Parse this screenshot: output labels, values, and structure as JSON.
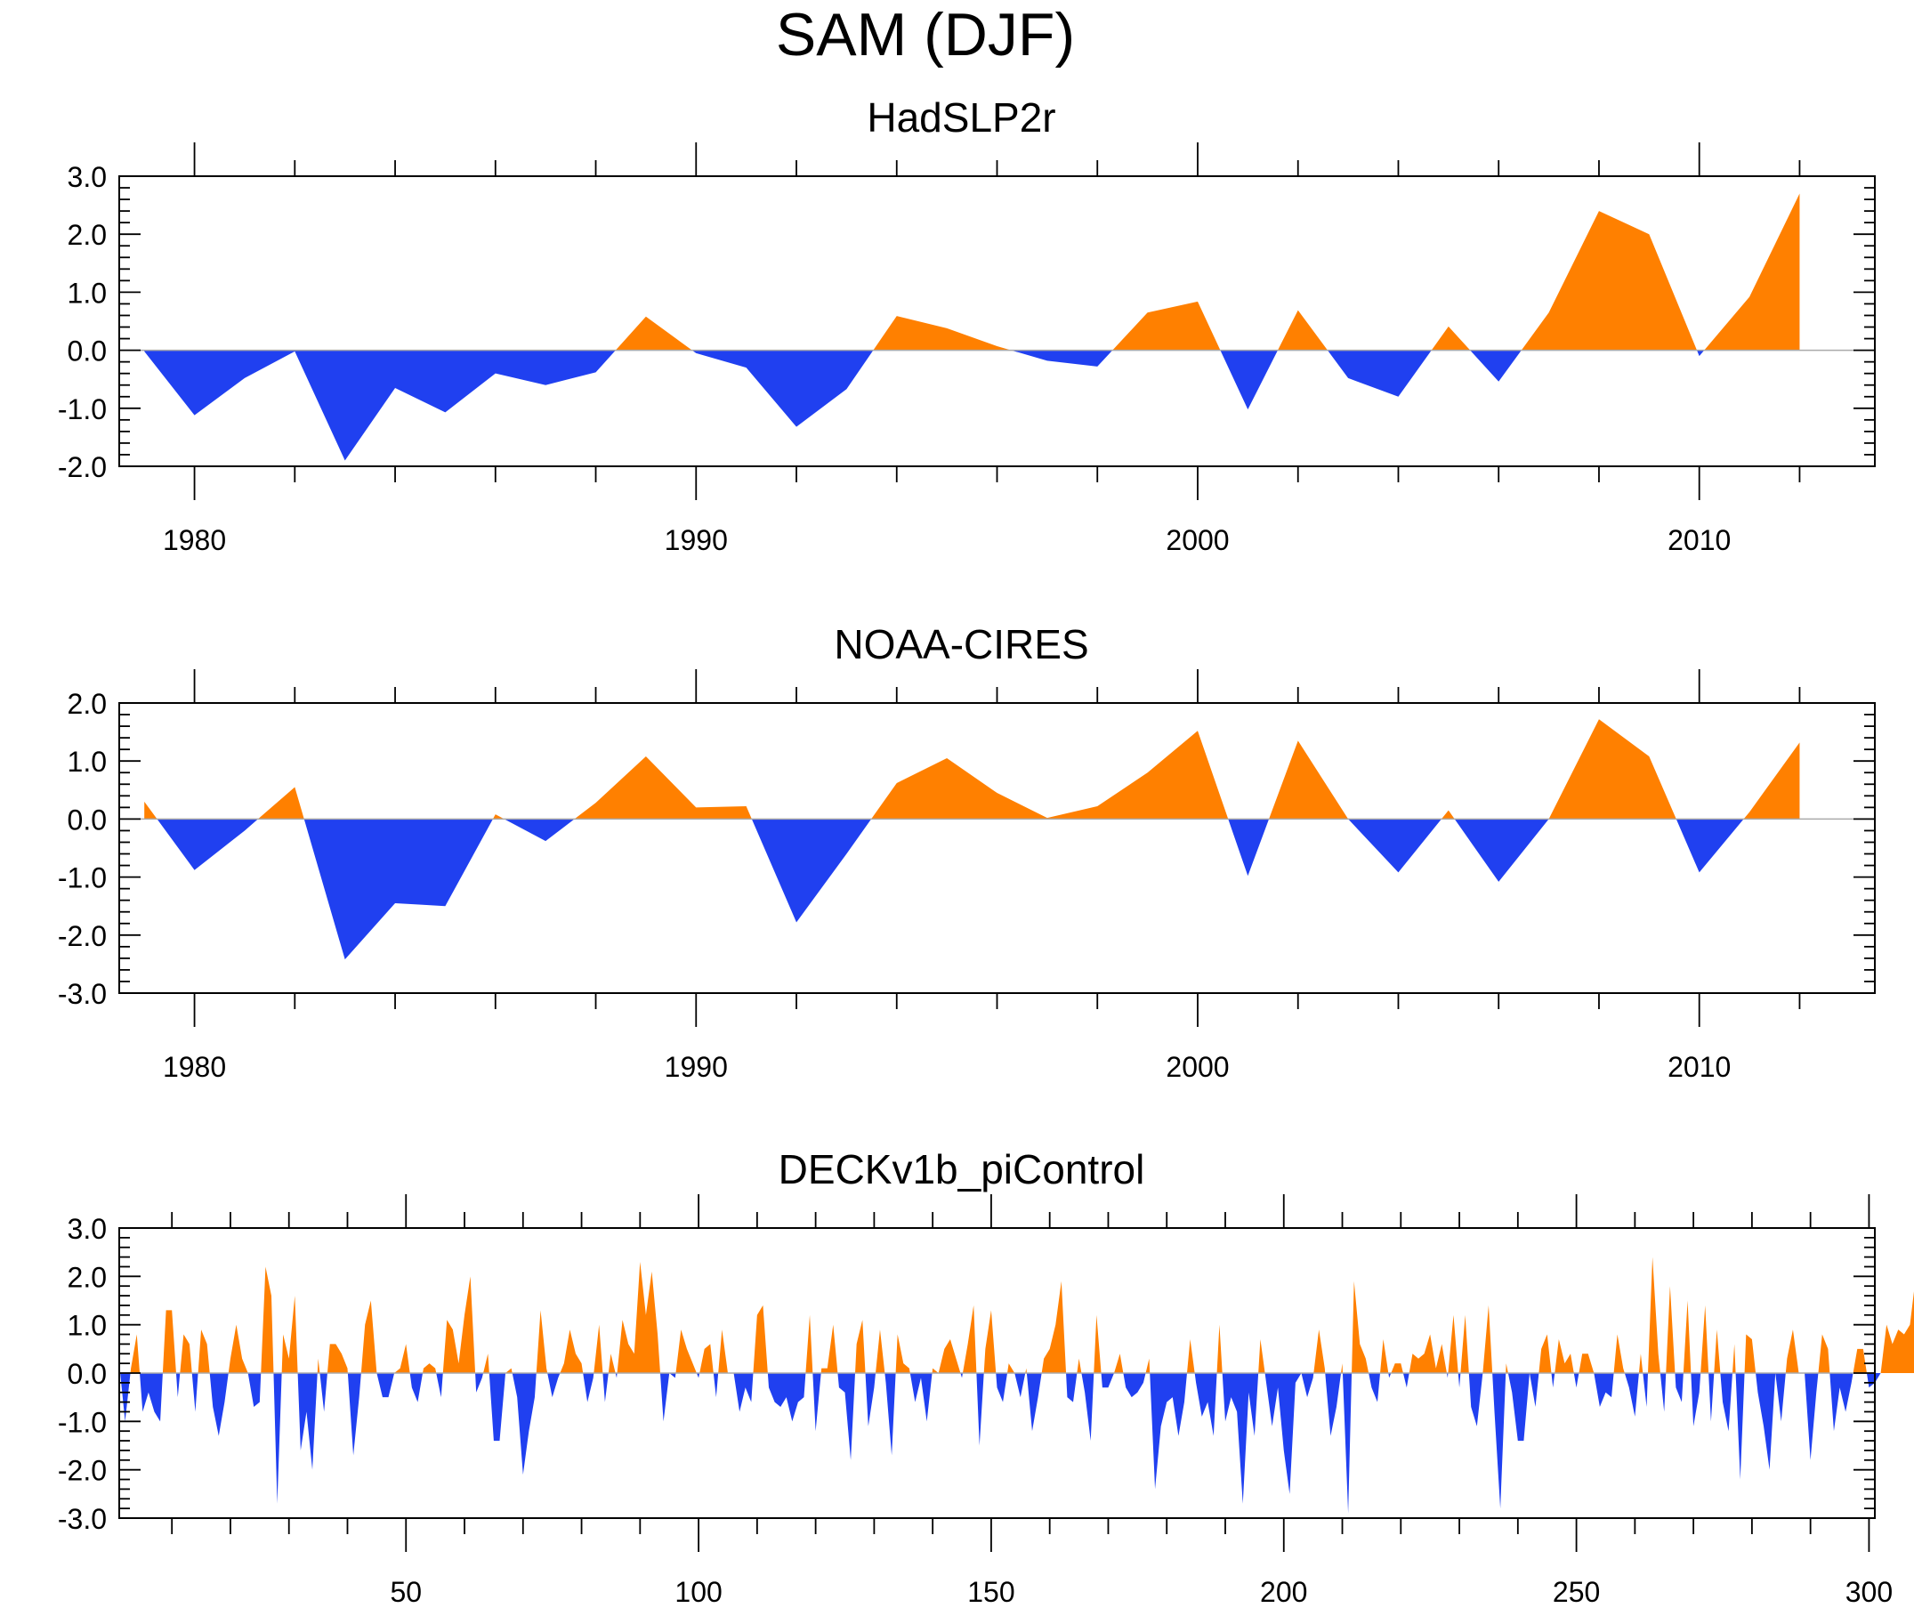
{
  "figure": {
    "title": "SAM (DJF)",
    "positive_color": "#ff8000",
    "negative_color": "#2040f0"
  },
  "chart_data": [
    {
      "type": "area",
      "title": "HadSLP2r",
      "xlabel": "",
      "ylabel": "",
      "xlim": [
        1978.5,
        2013.5
      ],
      "ylim": [
        -2.0,
        3.0
      ],
      "x_ticks": [
        1980,
        1990,
        2000,
        2010
      ],
      "x_tick_labels": [
        "1980",
        "1990",
        "2000",
        "2010"
      ],
      "y_ticks": [
        -2,
        -1,
        0,
        1,
        2,
        3
      ],
      "y_tick_labels": [
        "-2.0",
        "-1.0",
        "0.0",
        "1.0",
        "2.0",
        "3.0"
      ],
      "x": [
        1979,
        1980,
        1981,
        1982,
        1983,
        1984,
        1985,
        1986,
        1987,
        1988,
        1989,
        1990,
        1991,
        1992,
        1993,
        1994,
        1995,
        1996,
        1997,
        1998,
        1999,
        2000,
        2001,
        2002,
        2003,
        2004,
        2005,
        2006,
        2007,
        2008,
        2009,
        2010,
        2011,
        2012
      ],
      "values": [
        -0.02,
        -1.12,
        -0.48,
        -0.02,
        -1.9,
        -0.65,
        -1.07,
        -0.4,
        -0.6,
        -0.38,
        0.58,
        -0.05,
        -0.3,
        -1.32,
        -0.67,
        0.59,
        0.38,
        0.07,
        -0.18,
        -0.28,
        0.65,
        0.84,
        -1.02,
        0.69,
        -0.48,
        -0.8,
        0.41,
        -0.54,
        0.65,
        2.4,
        2.0,
        -0.1,
        0.92,
        2.7
      ]
    },
    {
      "type": "area",
      "title": "NOAA-CIRES",
      "xlabel": "",
      "ylabel": "",
      "xlim": [
        1978.5,
        2013.5
      ],
      "ylim": [
        -3.0,
        2.0
      ],
      "x_ticks": [
        1980,
        1990,
        2000,
        2010
      ],
      "x_tick_labels": [
        "1980",
        "1990",
        "2000",
        "2010"
      ],
      "y_ticks": [
        -3,
        -2,
        -1,
        0,
        1,
        2
      ],
      "y_tick_labels": [
        "-3.0",
        "-2.0",
        "-1.0",
        "0.0",
        "1.0",
        "2.0"
      ],
      "x": [
        1979,
        1980,
        1981,
        1982,
        1983,
        1984,
        1985,
        1986,
        1987,
        1988,
        1989,
        1990,
        1991,
        1992,
        1993,
        1994,
        1995,
        1996,
        1997,
        1998,
        1999,
        2000,
        2001,
        2002,
        2003,
        2004,
        2005,
        2006,
        2007,
        2008,
        2009,
        2010,
        2011,
        2012
      ],
      "values": [
        0.3,
        -0.88,
        -0.2,
        0.55,
        -2.42,
        -1.45,
        -1.5,
        0.08,
        -0.38,
        0.28,
        1.08,
        0.2,
        0.22,
        -1.78,
        -0.6,
        0.62,
        1.05,
        0.45,
        0.02,
        0.22,
        0.8,
        1.52,
        -0.98,
        1.35,
        0.0,
        -0.92,
        0.15,
        -1.08,
        0.0,
        1.72,
        1.08,
        -0.92,
        0.12,
        1.32
      ]
    },
    {
      "type": "area",
      "title": "DECKv1b_piControl",
      "xlabel": "",
      "ylabel": "",
      "xlim": [
        1,
        301
      ],
      "ylim": [
        -3.0,
        3.0
      ],
      "x_ticks": [
        50,
        100,
        150,
        200,
        250,
        300
      ],
      "x_tick_labels": [
        "50",
        "100",
        "150",
        "200",
        "250",
        "300"
      ],
      "y_ticks": [
        -3,
        -2,
        -1,
        0,
        1,
        2,
        3
      ],
      "y_tick_labels": [
        "-3.0",
        "-2.0",
        "-1.0",
        "0.0",
        "1.0",
        "2.0",
        "3.0"
      ],
      "x_start": 1,
      "x_step": 1,
      "values": [
        0.2,
        -1.0,
        0.1,
        0.8,
        -0.8,
        -0.4,
        -0.8,
        -1.0,
        1.3,
        1.3,
        -0.5,
        0.8,
        0.6,
        -0.8,
        0.9,
        0.6,
        -0.7,
        -1.3,
        -0.6,
        0.3,
        1.0,
        0.3,
        0.0,
        -0.7,
        -0.6,
        2.2,
        1.6,
        -2.7,
        0.8,
        0.3,
        1.6,
        -1.6,
        -0.8,
        -2.0,
        0.3,
        -0.8,
        0.6,
        0.6,
        0.4,
        0.1,
        -1.7,
        -0.5,
        1.0,
        1.5,
        0.0,
        -0.5,
        -0.5,
        0.0,
        0.1,
        0.6,
        -0.3,
        -0.6,
        0.1,
        0.2,
        0.1,
        -0.5,
        1.1,
        0.9,
        0.2,
        1.2,
        2.0,
        -0.4,
        -0.1,
        0.4,
        -1.4,
        -1.4,
        0.0,
        0.1,
        -0.5,
        -2.1,
        -1.2,
        -0.5,
        1.3,
        0.1,
        -0.5,
        -0.1,
        0.2,
        0.9,
        0.4,
        0.2,
        -0.6,
        -0.1,
        1.0,
        -0.6,
        0.4,
        -0.1,
        1.1,
        0.6,
        0.4,
        2.3,
        1.2,
        2.1,
        0.8,
        -1.0,
        0.0,
        -0.1,
        0.9,
        0.5,
        0.2,
        -0.1,
        0.5,
        0.6,
        -0.5,
        0.9,
        0.0,
        0.0,
        -0.8,
        -0.3,
        -0.6,
        1.2,
        1.4,
        -0.3,
        -0.6,
        -0.7,
        -0.5,
        -1.0,
        -0.6,
        -0.5,
        1.2,
        -1.2,
        0.1,
        0.1,
        1.0,
        -0.3,
        -0.4,
        -1.8,
        0.6,
        1.1,
        -1.1,
        -0.3,
        0.9,
        -0.2,
        -1.7,
        0.8,
        0.2,
        0.1,
        -0.6,
        -0.1,
        -1.0,
        0.1,
        0.0,
        0.5,
        0.7,
        0.3,
        -0.1,
        0.6,
        1.4,
        -1.5,
        0.5,
        1.3,
        -0.3,
        -0.6,
        0.2,
        0.0,
        -0.5,
        0.1,
        -1.2,
        -0.5,
        0.3,
        0.5,
        1.0,
        1.9,
        -0.5,
        -0.6,
        0.3,
        -0.4,
        -1.4,
        1.2,
        -0.3,
        -0.3,
        0.0,
        0.4,
        -0.3,
        -0.5,
        -0.4,
        -0.2,
        0.3,
        -2.4,
        -1.1,
        -0.6,
        -0.5,
        -1.3,
        -0.6,
        0.7,
        -0.2,
        -0.9,
        -0.6,
        -1.3,
        1.0,
        -1.0,
        -0.5,
        -0.8,
        -2.7,
        -0.4,
        -1.3,
        0.7,
        -0.2,
        -1.1,
        -0.3,
        -1.6,
        -2.5,
        -0.2,
        0.0,
        -0.5,
        -0.1,
        0.9,
        0.1,
        -1.3,
        -0.7,
        0.2,
        -2.9,
        1.9,
        0.6,
        0.3,
        -0.3,
        -0.6,
        0.7,
        -0.1,
        0.2,
        0.2,
        -0.3,
        0.4,
        0.3,
        0.4,
        0.8,
        0.1,
        0.6,
        -0.1,
        1.2,
        -0.3,
        1.2,
        -0.7,
        -1.1,
        0.0,
        1.4,
        -0.8,
        -2.8,
        0.2,
        -0.4,
        -1.4,
        -1.4,
        0.0,
        -0.7,
        0.5,
        0.8,
        -0.3,
        0.7,
        0.2,
        0.4,
        -0.3,
        0.4,
        0.4,
        0.0,
        -0.7,
        -0.4,
        -0.5,
        0.8,
        0.1,
        -0.3,
        -0.9,
        0.4,
        -0.7,
        2.4,
        0.4,
        -0.8,
        1.8,
        -0.3,
        -0.6,
        1.5,
        -1.1,
        -0.4,
        1.4,
        -1.0,
        0.9,
        -0.6,
        -1.2,
        0.6,
        -2.2,
        0.8,
        0.7,
        -0.4,
        -1.1,
        -2.0,
        0.0,
        -1.0,
        0.3,
        0.9,
        0.0,
        0.0,
        -1.8,
        -0.4,
        0.8,
        0.5,
        -1.2,
        -0.3,
        -0.8,
        -0.2,
        0.5,
        0.5,
        -0.3,
        -0.2,
        0.0,
        1.0,
        0.6,
        0.9,
        0.8,
        1.0,
        2.0,
        0.9
      ]
    }
  ]
}
